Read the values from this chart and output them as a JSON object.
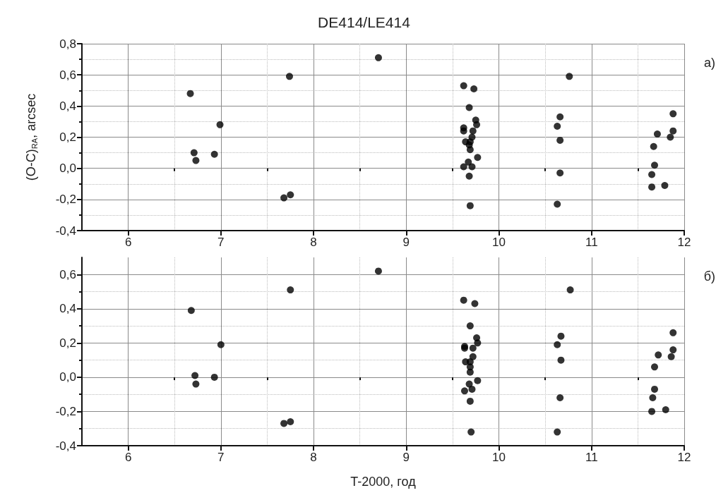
{
  "chart_data": [
    {
      "type": "scatter",
      "title": "DE414/LE414",
      "ylabel": "(O-C)$_{RA}$, arcsec",
      "annotations": [
        "а)"
      ],
      "color": "#000000",
      "marker": "circle",
      "grid": true,
      "xlim": [
        5.5,
        12
      ],
      "ylim": [
        -0.4,
        0.8
      ],
      "xticks": [
        6,
        7,
        8,
        9,
        10,
        11,
        12,
        {
          "value": 6.5,
          "label": null
        },
        {
          "value": 7.5,
          "label": null
        },
        {
          "value": 8.5,
          "label": null
        },
        {
          "value": 9.5,
          "label": null
        },
        {
          "value": 10.5,
          "label": null
        },
        {
          "value": 11.5,
          "label": null
        }
      ],
      "yticks": [
        {
          "value": -0.4,
          "label": "-0,4"
        },
        {
          "value": -0.2,
          "label": "-0,2"
        },
        {
          "value": 0,
          "label": "0,0"
        },
        {
          "value": 0.2,
          "label": "0,2"
        },
        {
          "value": 0.4,
          "label": "0,4"
        },
        {
          "value": 0.6,
          "label": "0,6"
        },
        {
          "value": 0.8,
          "label": "0,8"
        },
        {
          "value": -0.3,
          "label": null
        },
        {
          "value": -0.1,
          "label": null
        },
        {
          "value": 0.1,
          "label": null
        },
        {
          "value": 0.3,
          "label": null
        },
        {
          "value": 0.5,
          "label": null
        },
        {
          "value": 0.7,
          "label": null
        }
      ],
      "x": [
        8.7,
        7.74,
        6.67,
        6.99,
        6.71,
        6.93,
        6.73,
        7.68,
        7.75,
        9.62,
        9.73,
        9.68,
        9.75,
        9.76,
        9.62,
        9.62,
        9.72,
        9.71,
        9.64,
        9.69,
        9.68,
        9.69,
        9.77,
        9.67,
        9.62,
        9.71,
        9.68,
        9.69,
        10.76,
        10.66,
        10.63,
        10.66,
        10.66,
        10.63,
        11.88,
        11.88,
        11.71,
        11.85,
        11.67,
        11.68,
        11.65,
        11.79,
        11.65
      ],
      "values": [
        0.71,
        0.59,
        0.48,
        0.28,
        0.1,
        0.09,
        0.05,
        -0.19,
        -0.17,
        0.53,
        0.51,
        0.39,
        0.31,
        0.28,
        0.26,
        0.24,
        0.24,
        0.2,
        0.17,
        0.17,
        0.15,
        0.12,
        0.07,
        0.04,
        0.01,
        0.01,
        -0.05,
        -0.24,
        0.59,
        0.33,
        0.27,
        0.18,
        -0.03,
        -0.23,
        0.35,
        0.24,
        0.22,
        0.2,
        0.14,
        0.02,
        -0.04,
        -0.11,
        -0.12
      ]
    },
    {
      "type": "scatter",
      "xlabel": "T-2000, год",
      "annotations": [
        "б)"
      ],
      "color": "#000000",
      "marker": "circle",
      "grid": true,
      "xlim": [
        5.5,
        12
      ],
      "ylim": [
        -0.4,
        0.7
      ],
      "xticks": [
        6,
        7,
        8,
        9,
        10,
        11,
        12,
        {
          "value": 6.5,
          "label": null
        },
        {
          "value": 7.5,
          "label": null
        },
        {
          "value": 8.5,
          "label": null
        },
        {
          "value": 9.5,
          "label": null
        },
        {
          "value": 10.5,
          "label": null
        },
        {
          "value": 11.5,
          "label": null
        }
      ],
      "yticks": [
        {
          "value": -0.4,
          "label": "-0,4"
        },
        {
          "value": -0.2,
          "label": "-0,2"
        },
        {
          "value": 0,
          "label": "0,0"
        },
        {
          "value": 0.2,
          "label": "0,2"
        },
        {
          "value": 0.4,
          "label": "0,4"
        },
        {
          "value": 0.6,
          "label": "0,6"
        },
        {
          "value": -0.3,
          "label": null
        },
        {
          "value": -0.1,
          "label": null
        },
        {
          "value": 0.1,
          "label": null
        },
        {
          "value": 0.3,
          "label": null
        },
        {
          "value": 0.5,
          "label": null
        }
      ],
      "x": [
        8.7,
        7.75,
        6.68,
        7.0,
        6.72,
        6.93,
        6.73,
        7.68,
        7.75,
        9.62,
        9.74,
        9.69,
        9.76,
        9.77,
        9.63,
        9.63,
        9.72,
        9.72,
        9.64,
        9.69,
        9.69,
        9.69,
        9.77,
        9.68,
        9.63,
        9.71,
        9.69,
        9.7,
        10.77,
        10.67,
        10.63,
        10.67,
        10.66,
        10.63,
        11.88,
        11.88,
        11.72,
        11.86,
        11.68,
        11.68,
        11.66,
        11.8,
        11.65
      ],
      "values": [
        0.62,
        0.51,
        0.39,
        0.19,
        0.01,
        0.0,
        -0.04,
        -0.27,
        -0.26,
        0.45,
        0.43,
        0.3,
        0.23,
        0.2,
        0.18,
        0.17,
        0.17,
        0.12,
        0.09,
        0.09,
        0.06,
        0.03,
        -0.02,
        -0.04,
        -0.08,
        -0.07,
        -0.14,
        -0.32,
        0.51,
        0.24,
        0.19,
        0.1,
        -0.12,
        -0.32,
        0.26,
        0.16,
        0.13,
        0.12,
        0.06,
        -0.07,
        -0.12,
        -0.19,
        -0.2
      ]
    }
  ]
}
